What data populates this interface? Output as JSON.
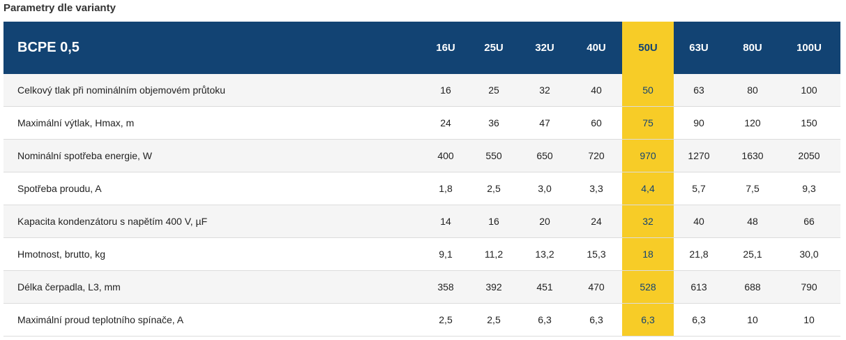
{
  "title": "Parametry dle varianty",
  "table": {
    "model": "BCPE 0,5",
    "highlight_color": "#f7cc27",
    "header_color": "#124373",
    "highlight_column": 4,
    "columns": [
      "16U",
      "25U",
      "32U",
      "40U",
      "50U",
      "63U",
      "80U",
      "100U"
    ],
    "rows": [
      {
        "label": "Celkový tlak při nominálním objemovém průtoku",
        "values": [
          "16",
          "25",
          "32",
          "40",
          "50",
          "63",
          "80",
          "100"
        ]
      },
      {
        "label": "Maximální výtlak, Hmax, m",
        "values": [
          "24",
          "36",
          "47",
          "60",
          "75",
          "90",
          "120",
          "150"
        ]
      },
      {
        "label": "Nominální spotřeba energie, W",
        "values": [
          "400",
          "550",
          "650",
          "720",
          "970",
          "1270",
          "1630",
          "2050"
        ]
      },
      {
        "label": "Spotřeba proudu, A",
        "values": [
          "1,8",
          "2,5",
          "3,0",
          "3,3",
          "4,4",
          "5,7",
          "7,5",
          "9,3"
        ]
      },
      {
        "label": "Kapacita kondenzátoru s napětím 400 V, µF",
        "values": [
          "14",
          "16",
          "20",
          "24",
          "32",
          "40",
          "48",
          "66"
        ]
      },
      {
        "label": "Hmotnost, brutto, kg",
        "values": [
          "9,1",
          "11,2",
          "13,2",
          "15,3",
          "18",
          "21,8",
          "25,1",
          "30,0"
        ]
      },
      {
        "label": "Délka čerpadla, L3, mm",
        "values": [
          "358",
          "392",
          "451",
          "470",
          "528",
          "613",
          "688",
          "790"
        ]
      },
      {
        "label": "Maximální proud teplotního spínače, A",
        "values": [
          "2,5",
          "2,5",
          "6,3",
          "6,3",
          "6,3",
          "6,3",
          "10",
          "10"
        ]
      }
    ]
  }
}
